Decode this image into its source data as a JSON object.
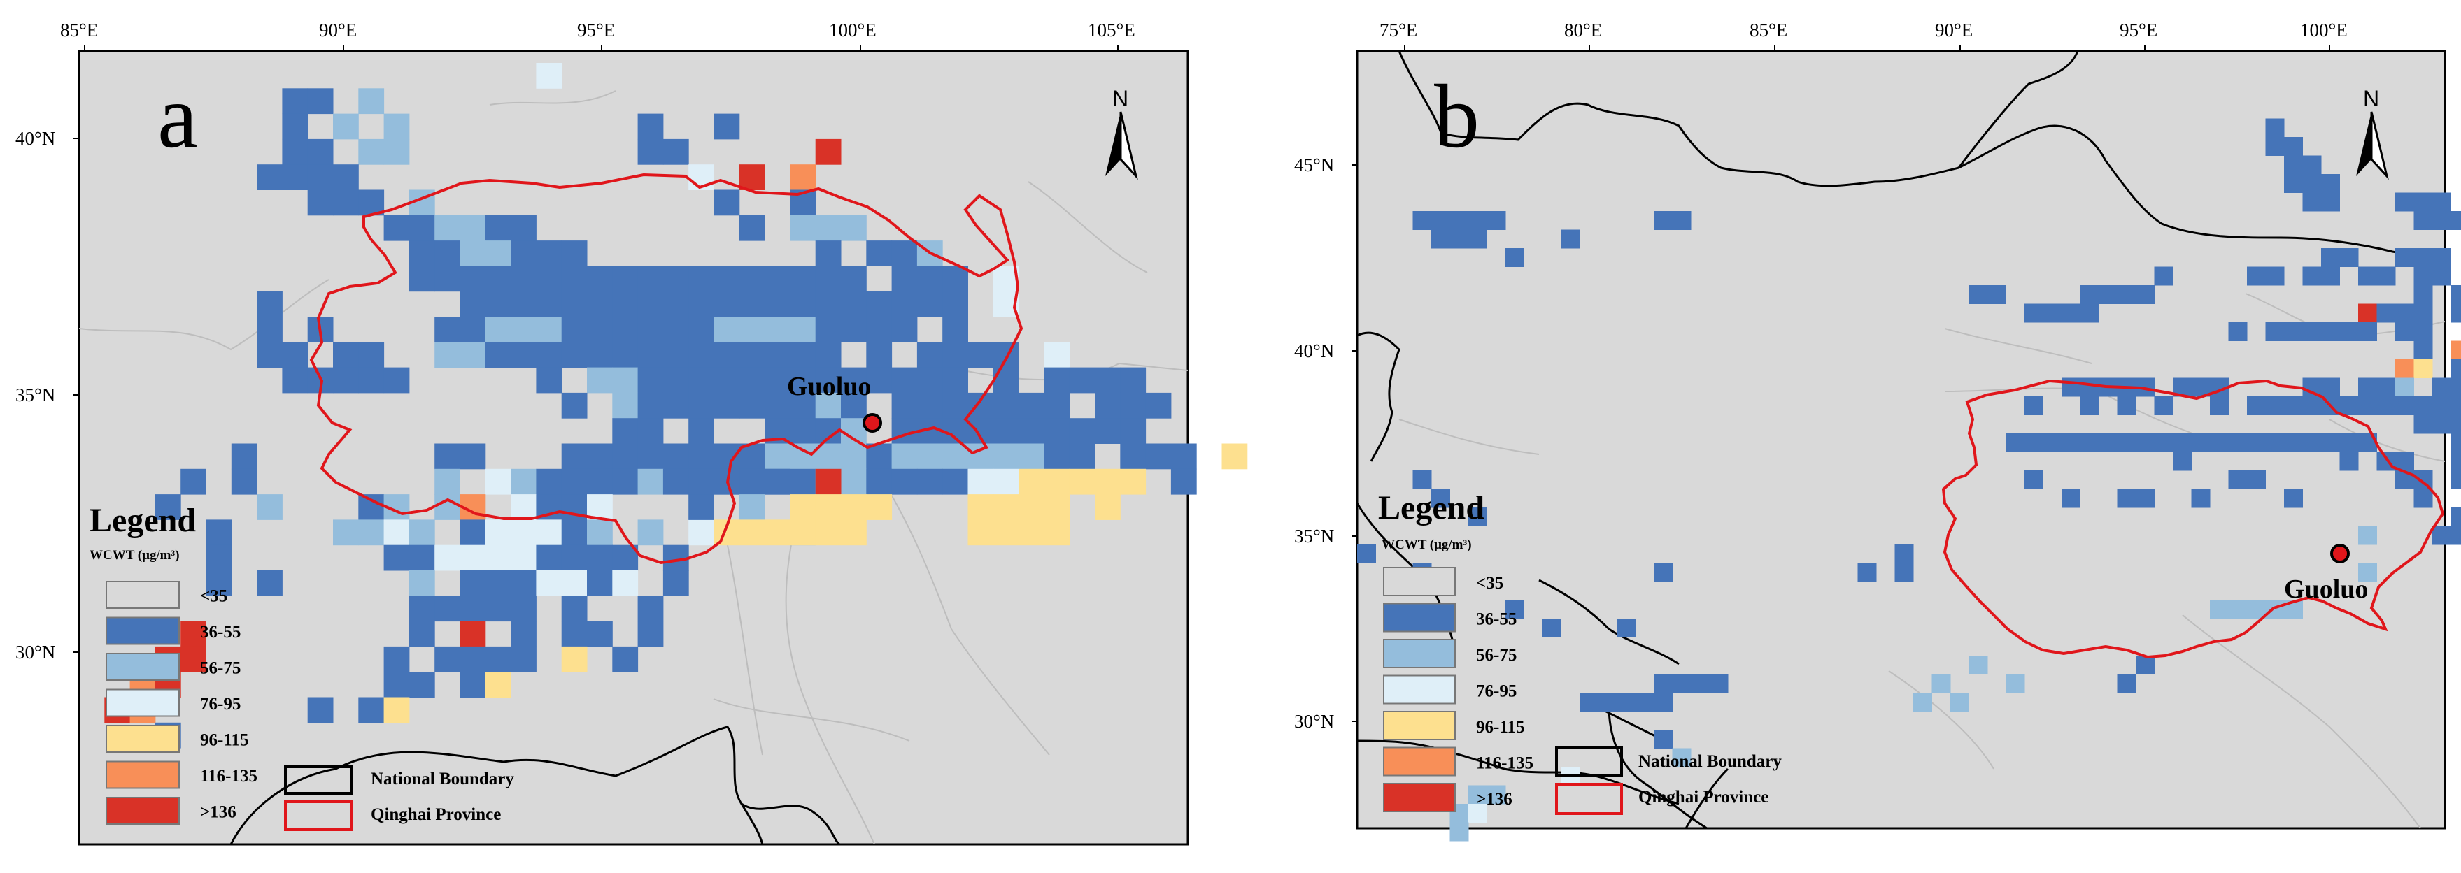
{
  "colors": {
    "background": "#d9d9d9",
    "province_line": "#e0161b",
    "national_line": "#000000",
    "bins": [
      "#d9d9d9",
      "#4574b8",
      "#94bddc",
      "#dfeff8",
      "#fde08f",
      "#f88f58",
      "#d93227"
    ]
  },
  "panel_a": {
    "letter": "a",
    "lon_ticks": [
      "85°E",
      "90°E",
      "95°E",
      "100°E",
      "105°E"
    ],
    "lat_ticks": [
      "40°N",
      "35°N",
      "30°N"
    ],
    "north_label": "N",
    "place_label": "Guoluo",
    "legend": {
      "title": "Legend",
      "subtitle": "WCWT (μg/m³)",
      "items": [
        "<35",
        "36-55",
        "56-75",
        "76-95",
        "96-115",
        "116-135",
        ">136"
      ],
      "boundary_items": [
        "National Boundary",
        "Qinghai  Province"
      ]
    }
  },
  "panel_b": {
    "letter": "b",
    "lon_ticks": [
      "75°E",
      "80°E",
      "85°E",
      "90°E",
      "95°E",
      "100°E"
    ],
    "lat_ticks": [
      "45°N",
      "40°N",
      "35°N",
      "30°N"
    ],
    "north_label": "N",
    "place_label": "Guoluo",
    "legend": {
      "title": "Legend",
      "subtitle": "WCWT (μg/m³)",
      "items": [
        "<35",
        "36-55",
        "56-75",
        "76-95",
        "96-115",
        "116-135",
        ">136"
      ],
      "boundary_items": [
        "National Boundary",
        "Qinghai  Province"
      ]
    }
  }
}
